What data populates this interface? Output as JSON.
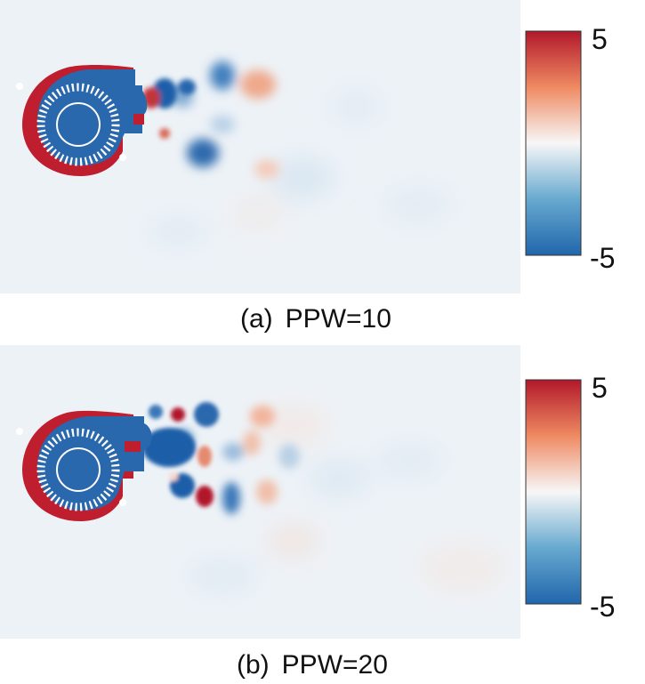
{
  "colormap": {
    "low_color": "#2166ac",
    "mid_color": "#f7f7f7",
    "high_color": "#b2182b"
  },
  "panels": [
    {
      "id": "a",
      "label": "(a)",
      "title": "PPW=10",
      "colorbar": {
        "max_label": "5",
        "min_label": "-5"
      }
    },
    {
      "id": "b",
      "label": "(b)",
      "title": "PPW=20",
      "colorbar": {
        "max_label": "5",
        "min_label": "-5"
      }
    }
  ]
}
